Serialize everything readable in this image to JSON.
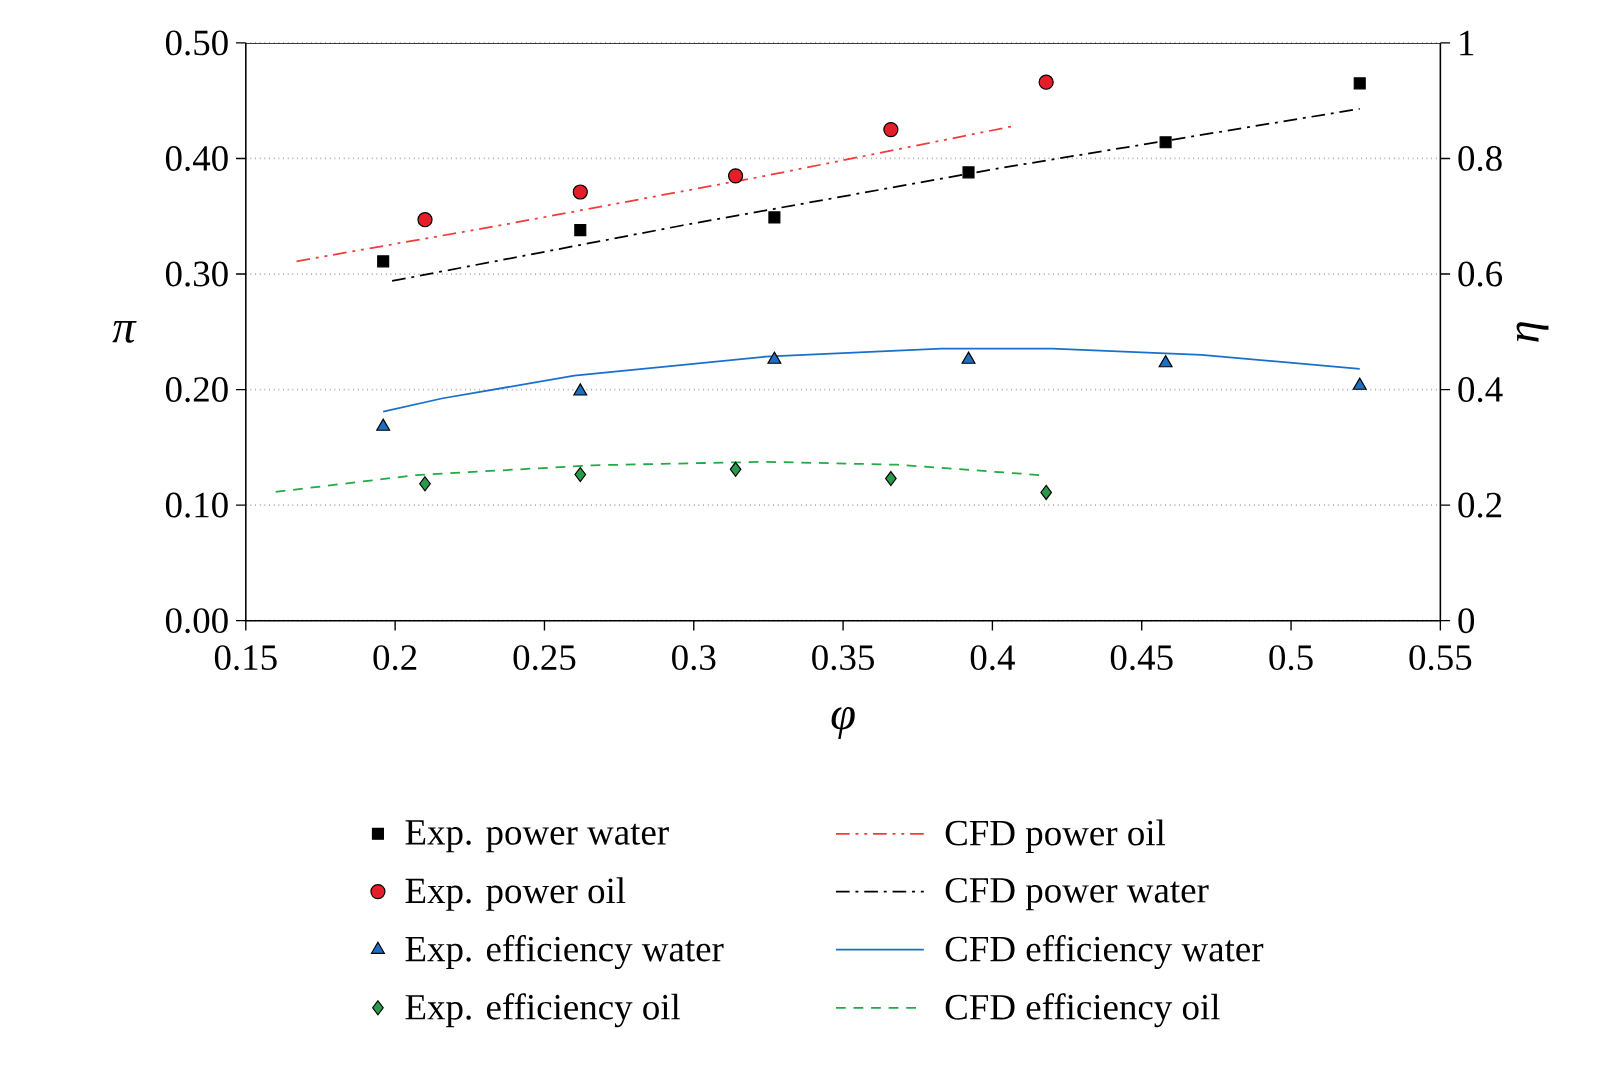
{
  "chart_data": {
    "type": "line",
    "xlabel": "φ",
    "ylabel": "π",
    "y2label": "η",
    "xlim": [
      0.15,
      0.55
    ],
    "xticks": [
      0.15,
      0.2,
      0.25,
      0.3,
      0.35,
      0.4,
      0.45,
      0.5,
      0.55
    ],
    "ylim": [
      0,
      0.5
    ],
    "yticks": [
      {
        "value": 0,
        "label": "0.00"
      },
      {
        "value": 0.1,
        "label": "0.10"
      },
      {
        "value": 0.2,
        "label": "0.20"
      },
      {
        "value": 0.3,
        "label": "0.30"
      },
      {
        "value": 0.4,
        "label": "0.40"
      },
      {
        "value": 0.5,
        "label": "0.50"
      }
    ],
    "y2lim": [
      0,
      1
    ],
    "y2ticks": [
      0,
      0.2,
      0.4,
      0.6,
      0.8,
      1
    ],
    "grid": "y",
    "legend": "bottom",
    "series": [
      {
        "name": "Exp. power water",
        "type": "scatter",
        "marker": "square",
        "color": "#000000",
        "x": [
          0.196,
          0.262,
          0.327,
          0.392,
          0.458,
          0.523
        ],
        "values": [
          0.311,
          0.338,
          0.349,
          0.388,
          0.414,
          0.465
        ]
      },
      {
        "name": "Exp. power oil",
        "type": "scatter",
        "marker": "circle",
        "color": "#e3202a",
        "x": [
          0.21,
          0.262,
          0.314,
          0.366,
          0.418
        ],
        "values": [
          0.347,
          0.371,
          0.385,
          0.425,
          0.466
        ]
      },
      {
        "name": "Exp. efficiency water",
        "type": "scatter",
        "marker": "triangle",
        "color": "#1f6fc0",
        "axis": "y2",
        "x": [
          0.196,
          0.262,
          0.327,
          0.392,
          0.458,
          0.523
        ],
        "values": [
          0.336,
          0.397,
          0.452,
          0.452,
          0.446,
          0.407
        ]
      },
      {
        "name": "Exp. efficiency oil",
        "type": "scatter",
        "marker": "diamond",
        "color": "#2a9a4a",
        "axis": "y2",
        "x": [
          0.21,
          0.262,
          0.314,
          0.366,
          0.418
        ],
        "values": [
          0.237,
          0.253,
          0.262,
          0.246,
          0.222
        ]
      },
      {
        "name": "CFD power oil",
        "line_style": "dashdotdot",
        "color": "#f03c3c",
        "x": [
          0.167,
          0.237,
          0.324,
          0.407
        ],
        "values": [
          0.311,
          0.343,
          0.385,
          0.428
        ]
      },
      {
        "name": "CFD power water",
        "line_style": "dashdot",
        "color": "#000000",
        "x": [
          0.199,
          0.296,
          0.401,
          0.523
        ],
        "values": [
          0.294,
          0.342,
          0.391,
          0.443
        ]
      },
      {
        "name": "CFD efficiency water",
        "line_style": "solid",
        "color": "#1a6fcc",
        "axis": "y2",
        "x": [
          0.196,
          0.216,
          0.26,
          0.324,
          0.383,
          0.42,
          0.47,
          0.523
        ],
        "values": [
          0.362,
          0.385,
          0.424,
          0.457,
          0.471,
          0.471,
          0.46,
          0.436
        ]
      },
      {
        "name": "CFD efficiency oil",
        "line_style": "dashed",
        "color": "#22aa44",
        "axis": "y2",
        "x": [
          0.16,
          0.207,
          0.266,
          0.324,
          0.368,
          0.416
        ],
        "values": [
          0.223,
          0.252,
          0.269,
          0.275,
          0.27,
          0.252
        ]
      }
    ]
  }
}
